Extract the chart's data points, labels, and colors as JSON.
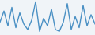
{
  "values": [
    40,
    70,
    30,
    80,
    25,
    65,
    35,
    20,
    45,
    95,
    15,
    50,
    30,
    75,
    20,
    15,
    40,
    90,
    20,
    55,
    25,
    85,
    30,
    60,
    35
  ],
  "line_color": "#4a90c4",
  "background_color": "#f0f4f8",
  "ylim": [
    5,
    100
  ],
  "linewidth": 1.0
}
